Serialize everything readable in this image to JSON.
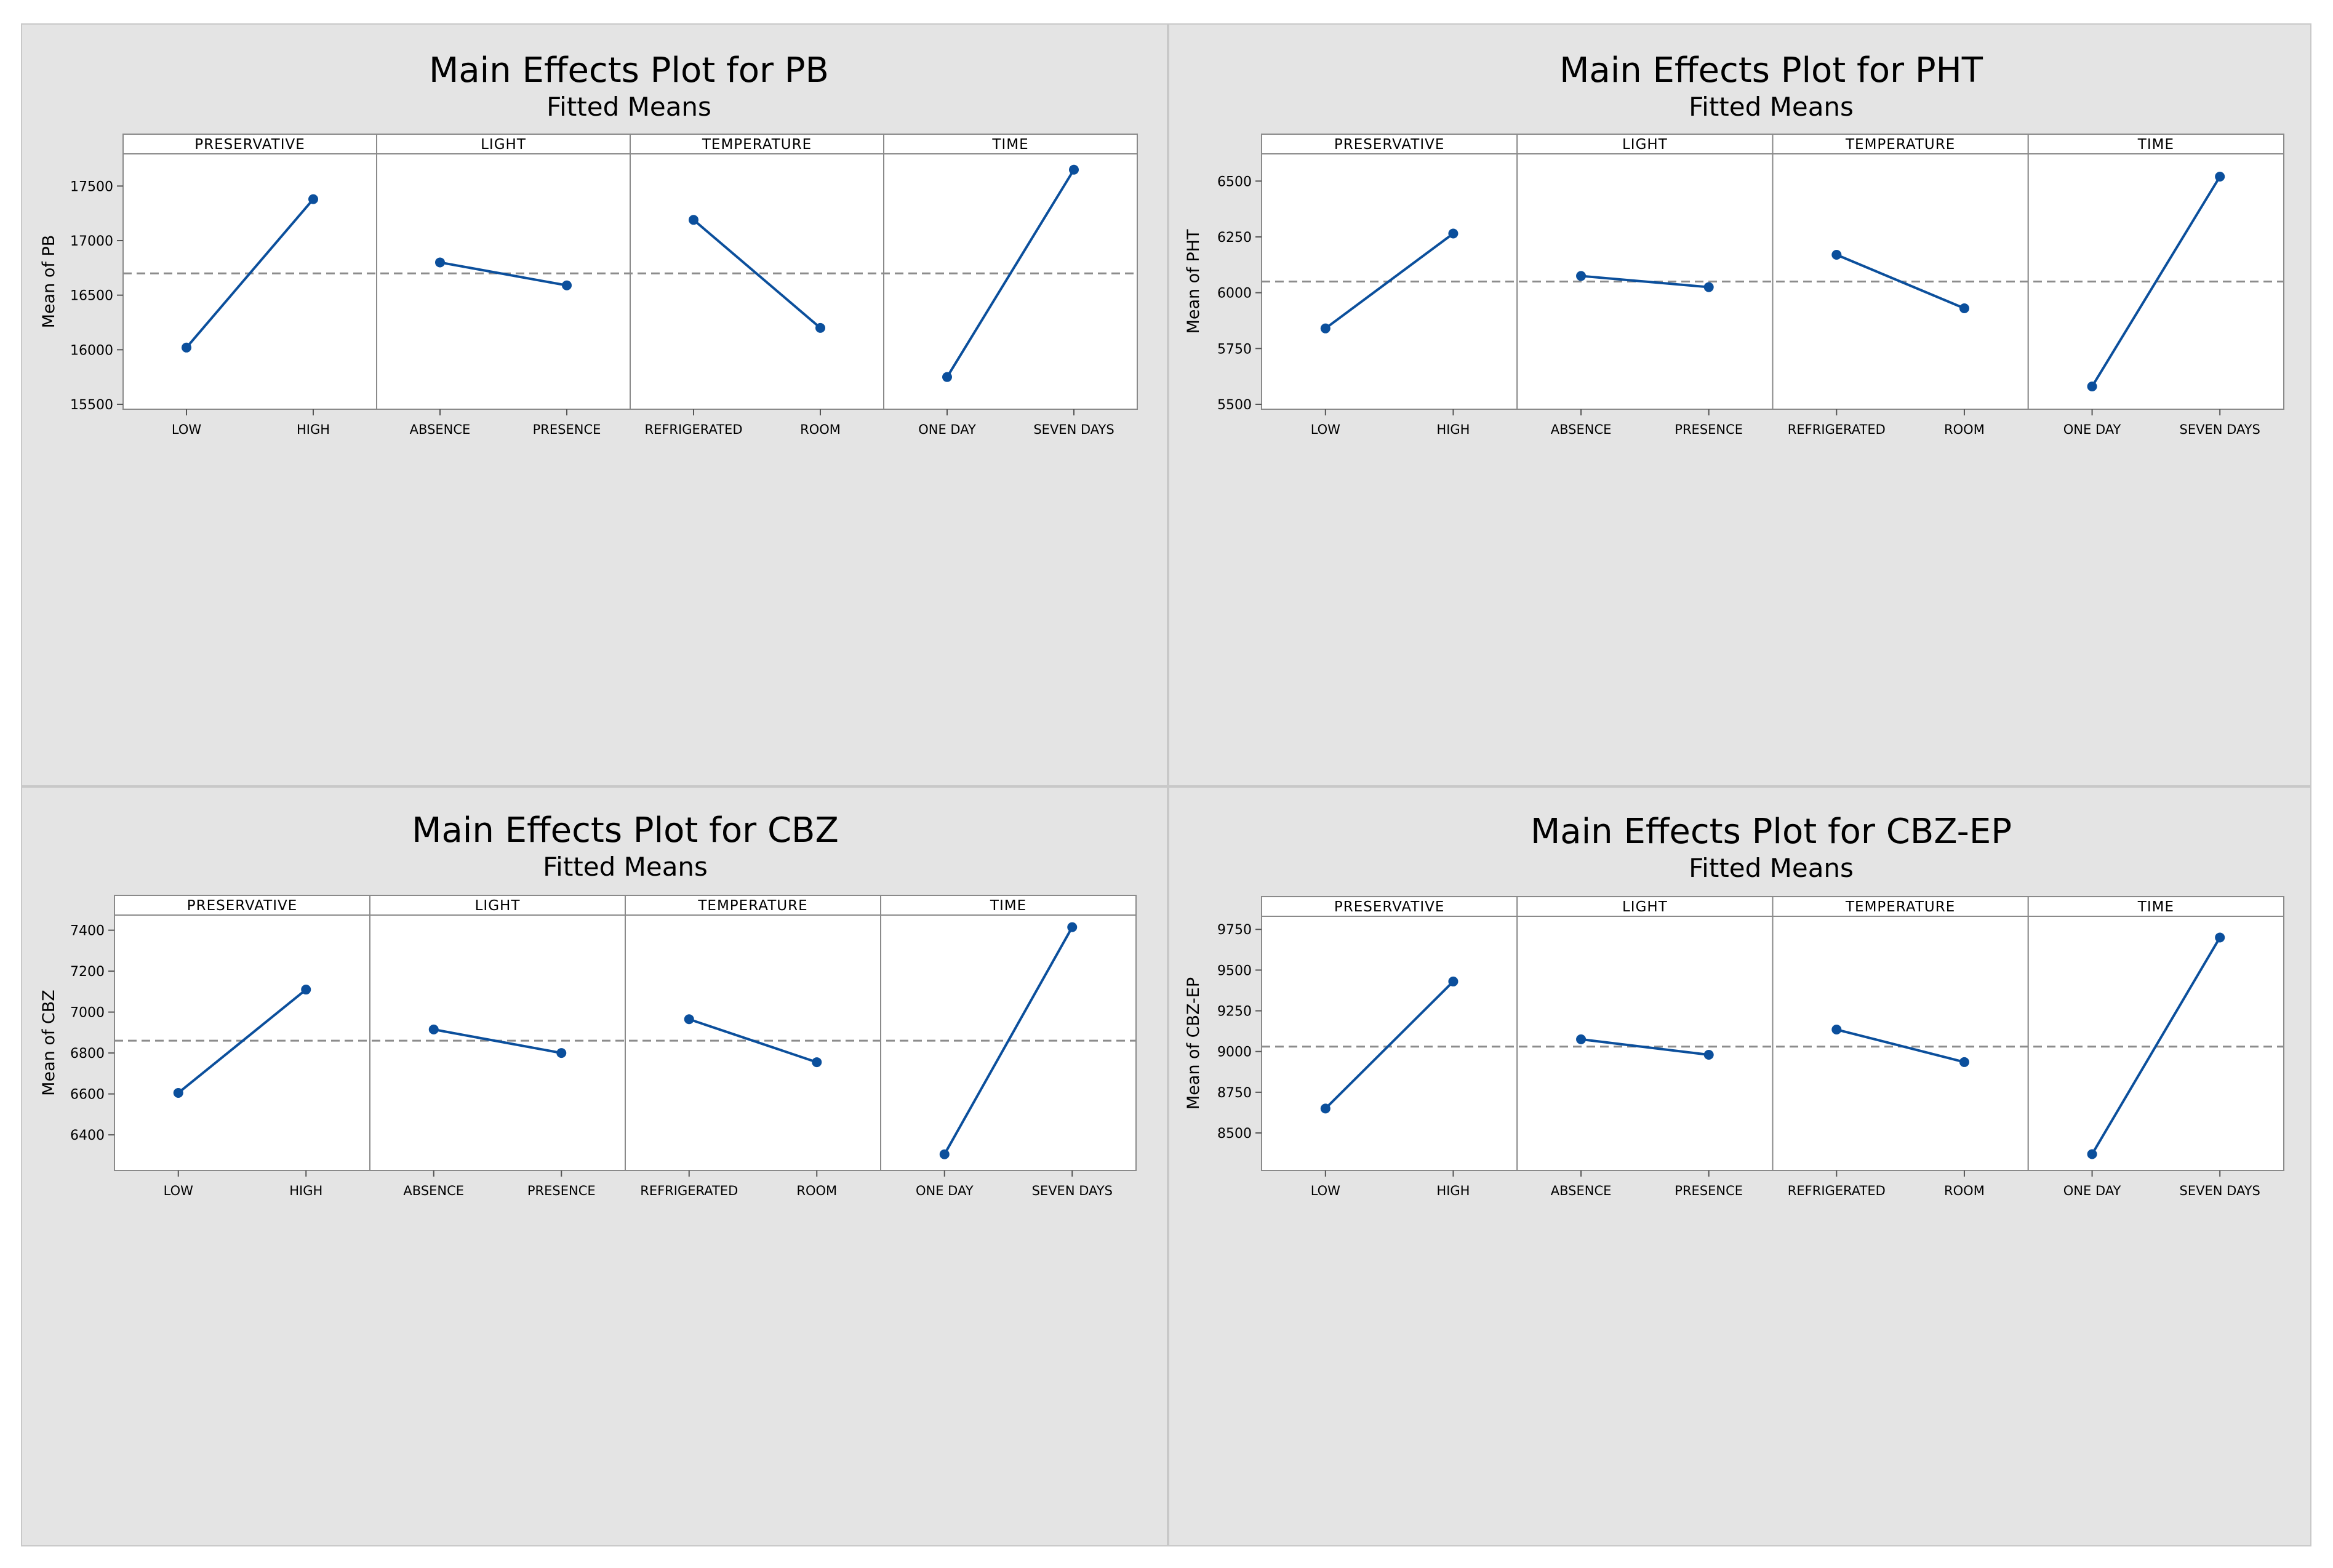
{
  "colors": {
    "line": "#0b4f9c",
    "panel_bg": "#ffffff",
    "outer_bg": "#e4e4e4",
    "ref_line": "#8c8c8c",
    "border": "#8a8a8a"
  },
  "chart_data": [
    {
      "type": "line",
      "title": "Main Effects Plot for PB",
      "subtitle": "Fitted Means",
      "ylabel": "Mean of PB",
      "ylim": [
        15500,
        17750
      ],
      "yticks": [
        15500,
        16000,
        16500,
        17000,
        17500
      ],
      "overall_mean": 16700,
      "panels": [
        {
          "factor": "PRESERVATIVE",
          "categories": [
            "LOW",
            "HIGH"
          ],
          "values": [
            16020,
            17380
          ]
        },
        {
          "factor": "LIGHT",
          "categories": [
            "ABSENCE",
            "PRESENCE"
          ],
          "values": [
            16800,
            16590
          ]
        },
        {
          "factor": "TEMPERATURE",
          "categories": [
            "REFRIGERATED",
            "ROOM"
          ],
          "values": [
            17190,
            16200
          ]
        },
        {
          "factor": "TIME",
          "categories": [
            "ONE DAY",
            "SEVEN DAYS"
          ],
          "values": [
            15750,
            17650
          ]
        }
      ]
    },
    {
      "type": "line",
      "title": "Main Effects Plot for PHT",
      "subtitle": "Fitted Means",
      "ylabel": "Mean of PHT",
      "ylim": [
        5500,
        6600
      ],
      "yticks": [
        5500,
        5750,
        6000,
        6250,
        6500
      ],
      "overall_mean": 6050,
      "panels": [
        {
          "factor": "PRESERVATIVE",
          "categories": [
            "LOW",
            "HIGH"
          ],
          "values": [
            5840,
            6265
          ]
        },
        {
          "factor": "LIGHT",
          "categories": [
            "ABSENCE",
            "PRESENCE"
          ],
          "values": [
            6075,
            6025
          ]
        },
        {
          "factor": "TEMPERATURE",
          "categories": [
            "REFRIGERATED",
            "ROOM"
          ],
          "values": [
            6170,
            5930
          ]
        },
        {
          "factor": "TIME",
          "categories": [
            "ONE DAY",
            "SEVEN DAYS"
          ],
          "values": [
            5580,
            6520
          ]
        }
      ]
    },
    {
      "type": "line",
      "title": "Main Effects Plot for CBZ",
      "subtitle": "Fitted Means",
      "ylabel": "Mean of CBZ",
      "ylim": [
        6250,
        7450
      ],
      "yticks": [
        6400,
        6600,
        6800,
        7000,
        7200,
        7400
      ],
      "overall_mean": 6860,
      "panels": [
        {
          "factor": "PRESERVATIVE",
          "categories": [
            "LOW",
            "HIGH"
          ],
          "values": [
            6605,
            7110
          ]
        },
        {
          "factor": "LIGHT",
          "categories": [
            "ABSENCE",
            "PRESENCE"
          ],
          "values": [
            6915,
            6800
          ]
        },
        {
          "factor": "TEMPERATURE",
          "categories": [
            "REFRIGERATED",
            "ROOM"
          ],
          "values": [
            6965,
            6755
          ]
        },
        {
          "factor": "TIME",
          "categories": [
            "ONE DAY",
            "SEVEN DAYS"
          ],
          "values": [
            6305,
            7415
          ]
        }
      ]
    },
    {
      "type": "line",
      "title": "Main Effects Plot for CBZ-EP",
      "subtitle": "Fitted Means",
      "ylabel": "Mean of CBZ-EP",
      "ylim": [
        8300,
        9800
      ],
      "yticks": [
        8500,
        8750,
        9000,
        9250,
        9500,
        9750
      ],
      "overall_mean": 9030,
      "panels": [
        {
          "factor": "PRESERVATIVE",
          "categories": [
            "LOW",
            "HIGH"
          ],
          "values": [
            8650,
            9430
          ]
        },
        {
          "factor": "LIGHT",
          "categories": [
            "ABSENCE",
            "PRESENCE"
          ],
          "values": [
            9075,
            8980
          ]
        },
        {
          "factor": "TEMPERATURE",
          "categories": [
            "REFRIGERATED",
            "ROOM"
          ],
          "values": [
            9135,
            8935
          ]
        },
        {
          "factor": "TIME",
          "categories": [
            "ONE DAY",
            "SEVEN DAYS"
          ],
          "values": [
            8370,
            9700
          ]
        }
      ]
    }
  ]
}
